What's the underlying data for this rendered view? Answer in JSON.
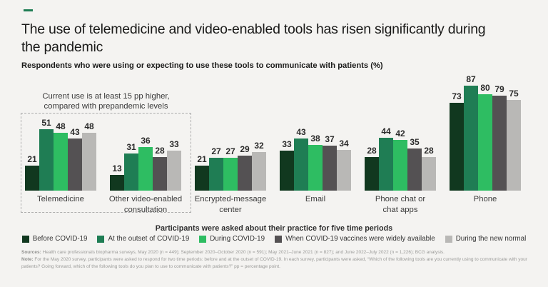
{
  "accent_color": "#1F7D54",
  "chart_data": {
    "type": "bar",
    "title": "The use of telemedicine and video-enabled tools has risen significantly during\nthe pandemic",
    "subtitle": "Respondents who were using or expecting to use these tools to communicate with patients (%)",
    "categories": [
      "Telemedicine",
      "Other video-enabled consultation",
      "Encrypted-message center",
      "Email",
      "Phone chat or chat apps",
      "Phone"
    ],
    "series": [
      {
        "name": "Before COVID-19",
        "color": "#11381F",
        "values": [
          21,
          13,
          21,
          33,
          28,
          73
        ]
      },
      {
        "name": "At the outset of COVID-19",
        "color": "#1F7D54",
        "values": [
          51,
          31,
          27,
          43,
          44,
          87
        ]
      },
      {
        "name": "During COVID-19",
        "color": "#2EBD62",
        "values": [
          48,
          36,
          27,
          38,
          42,
          80
        ]
      },
      {
        "name": "When COVID-19 vaccines were widely available",
        "color": "#545153",
        "values": [
          43,
          28,
          29,
          37,
          35,
          79
        ]
      },
      {
        "name": "During the new normal",
        "color": "#B9B8B6",
        "values": [
          48,
          33,
          32,
          34,
          28,
          75
        ]
      }
    ],
    "ylim": [
      0,
      100
    ],
    "grid": false,
    "value_labels": true,
    "legend_position": "bottom",
    "legend_title": "Participants were asked about their practice for five time periods",
    "annotation": {
      "line1": "Current use is at least 15 pp higher,",
      "line2": "compared with prepandemic levels",
      "applies_to_categories": [
        "Telemedicine",
        "Other video-enabled consultation"
      ]
    }
  },
  "footnotes": {
    "sources_label": "Sources:",
    "sources_text": " Health care professionals biopharma surveys, May 2020 (n = 449); September 2020–October 2020 (n = 591); May 2021–June 2021 (n = 827); and June 2022–July 2022 (n = 1,226); BCG analysis.",
    "note_label": "Note:",
    "note_text": " For the May 2020 survey, participants were asked to respond for two time periods: before and at the outset of COVID-19. In each survey, participants were asked, “Which of the following tools are you currently using to communicate with your patients? Going forward, which of the following tools do you plan to use to communicate with patients?” pp = percentage point."
  }
}
